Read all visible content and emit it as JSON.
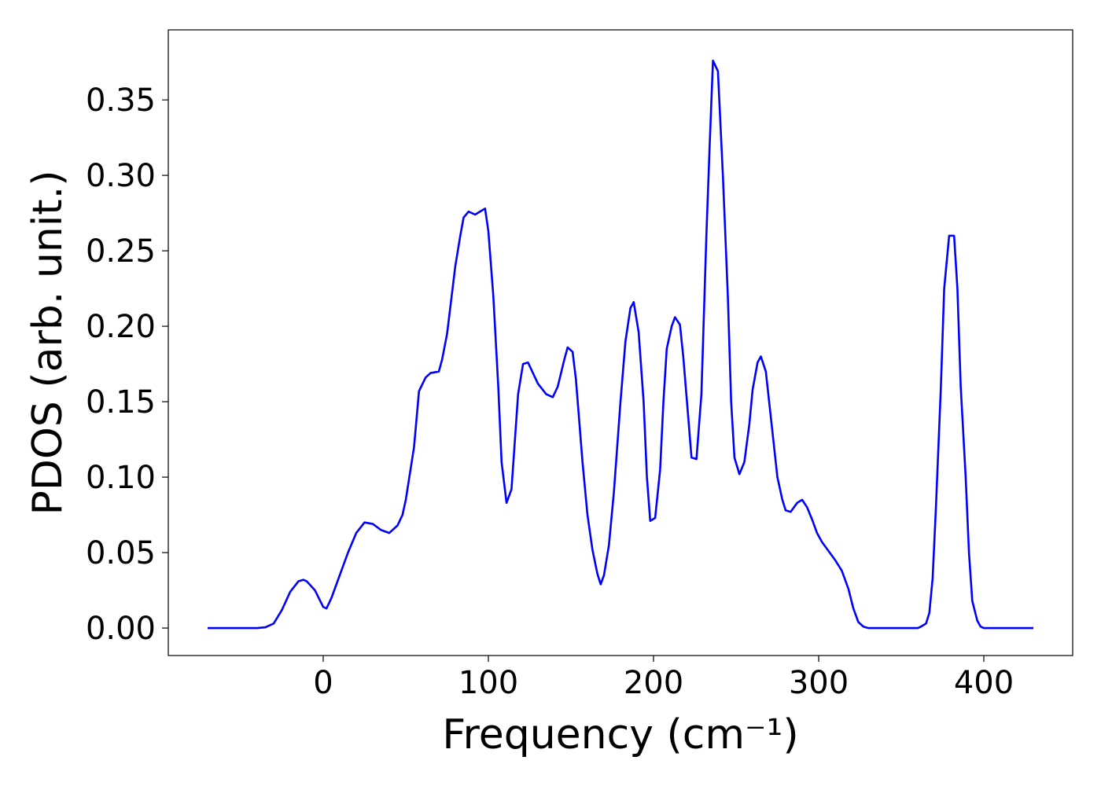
{
  "chart_data": {
    "type": "line",
    "x_label": "Frequency (cm⁻¹)",
    "y_label": "PDOS (arb. unit.)",
    "x": [
      -70,
      -40,
      -35,
      -30,
      -25,
      -20,
      -15,
      -12,
      -10,
      -5,
      0,
      2,
      5,
      10,
      15,
      20,
      25,
      30,
      35,
      40,
      45,
      48,
      50,
      55,
      58,
      62,
      65,
      70,
      72,
      75,
      80,
      83,
      85,
      88,
      92,
      95,
      98,
      100,
      103,
      106,
      108,
      111,
      114,
      118,
      121,
      124,
      130,
      135,
      139,
      142,
      146,
      148,
      151,
      153,
      157,
      160,
      163,
      166,
      168,
      170,
      173,
      176,
      180,
      183,
      186,
      188,
      191,
      194,
      196,
      198,
      201,
      204,
      206,
      208,
      211,
      213,
      216,
      218,
      221,
      223,
      226,
      229,
      232,
      234,
      236,
      239,
      242,
      245,
      247,
      249,
      252,
      255,
      258,
      260,
      263,
      265,
      268,
      270,
      273,
      275,
      278,
      280,
      283,
      287,
      290,
      293,
      296,
      299,
      302,
      306,
      310,
      314,
      318,
      321,
      324,
      327,
      330,
      360,
      362,
      365,
      367,
      369,
      371,
      374,
      376,
      379,
      382,
      384,
      386,
      389,
      391,
      393,
      396,
      398,
      400,
      430
    ],
    "series": [
      {
        "name": "PDOS",
        "color": "#0000ff",
        "values": [
          0,
          0,
          0.0005,
          0.003,
          0.012,
          0.024,
          0.031,
          0.032,
          0.031,
          0.025,
          0.014,
          0.013,
          0.02,
          0.035,
          0.05,
          0.063,
          0.07,
          0.069,
          0.065,
          0.063,
          0.068,
          0.075,
          0.085,
          0.12,
          0.157,
          0.166,
          0.169,
          0.17,
          0.178,
          0.195,
          0.24,
          0.26,
          0.272,
          0.276,
          0.274,
          0.276,
          0.278,
          0.263,
          0.22,
          0.16,
          0.11,
          0.083,
          0.092,
          0.155,
          0.175,
          0.176,
          0.162,
          0.155,
          0.153,
          0.16,
          0.178,
          0.186,
          0.183,
          0.165,
          0.11,
          0.075,
          0.052,
          0.036,
          0.029,
          0.035,
          0.055,
          0.09,
          0.15,
          0.19,
          0.212,
          0.216,
          0.196,
          0.15,
          0.1,
          0.071,
          0.073,
          0.105,
          0.15,
          0.185,
          0.2,
          0.206,
          0.201,
          0.18,
          0.14,
          0.113,
          0.112,
          0.155,
          0.26,
          0.32,
          0.376,
          0.369,
          0.3,
          0.22,
          0.15,
          0.113,
          0.102,
          0.11,
          0.135,
          0.158,
          0.176,
          0.18,
          0.17,
          0.15,
          0.12,
          0.1,
          0.085,
          0.078,
          0.077,
          0.083,
          0.085,
          0.08,
          0.072,
          0.063,
          0.057,
          0.051,
          0.045,
          0.038,
          0.026,
          0.013,
          0.004,
          0.001,
          0,
          0,
          0.001,
          0.003,
          0.01,
          0.033,
          0.08,
          0.16,
          0.225,
          0.26,
          0.26,
          0.225,
          0.16,
          0.1,
          0.05,
          0.018,
          0.005,
          0.001,
          0,
          0
        ]
      }
    ],
    "xlim": [
      -93.8,
      453.8
    ],
    "xticks": [
      0,
      100,
      200,
      300,
      400
    ],
    "ylim": [
      -0.0182,
      0.3964
    ],
    "yticks": [
      {
        "value": 0,
        "label": "0.00"
      },
      0.05,
      {
        "value": 0.1,
        "label": "0.10"
      },
      0.15,
      {
        "value": 0.2,
        "label": "0.20"
      },
      0.25,
      {
        "value": 0.3,
        "label": "0.30"
      },
      0.35
    ],
    "grid": false
  }
}
